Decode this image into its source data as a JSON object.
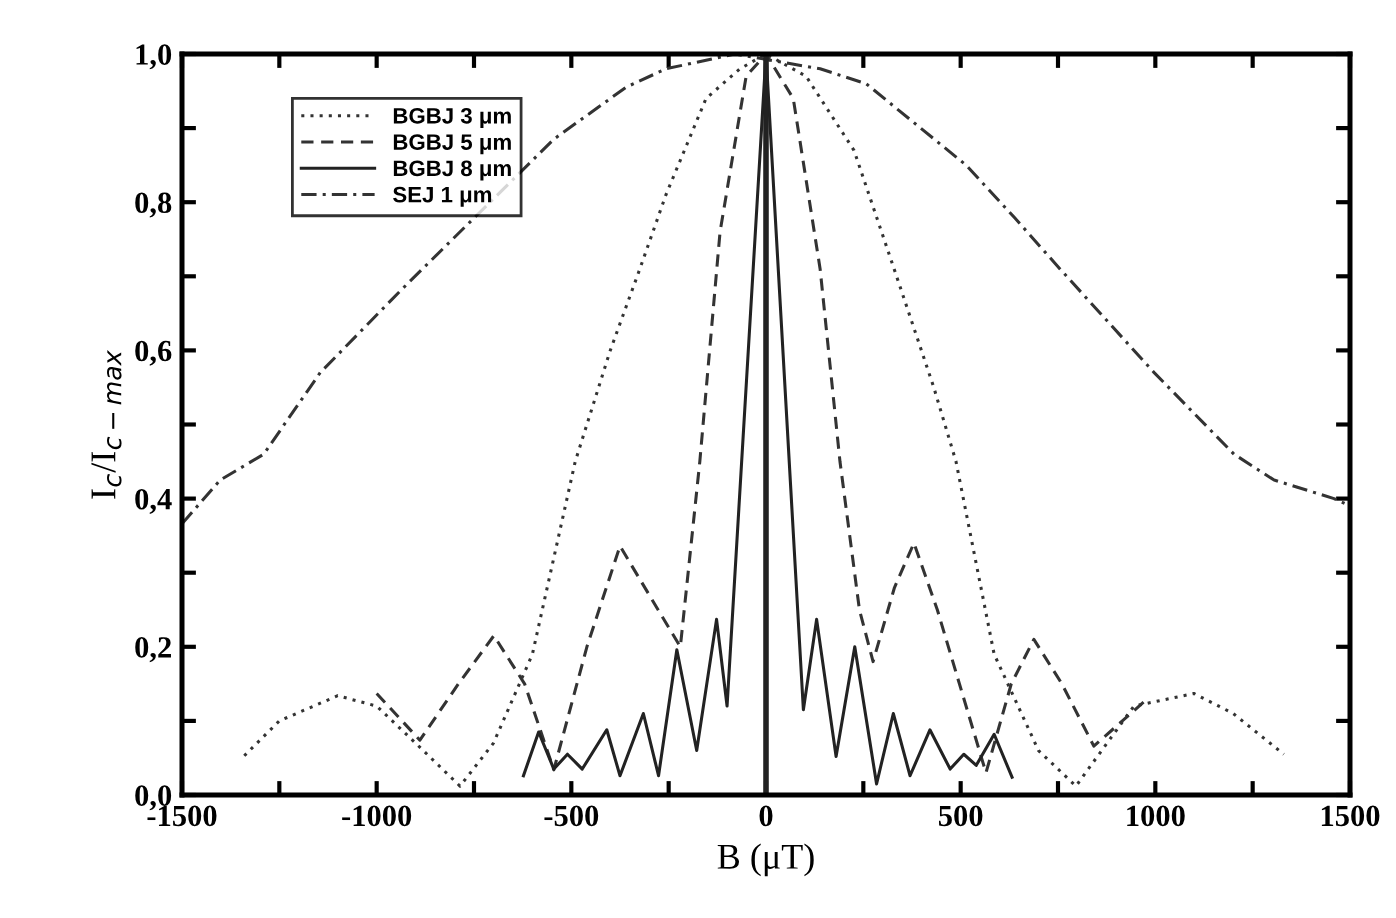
{
  "chart_data": {
    "type": "line",
    "xlabel": "B (μT)",
    "ylabel": "I$_{c}$/I$_{c−max}$",
    "xlim": [
      -1500,
      1500
    ],
    "ylim": [
      0,
      1.0
    ],
    "xticks": [
      -1500,
      {
        "value": -1250,
        "label": null
      },
      -1000,
      {
        "value": -750,
        "label": null
      },
      -500,
      {
        "value": -250,
        "label": null
      },
      0,
      {
        "value": 250,
        "label": null
      },
      500,
      {
        "value": 750,
        "label": null
      },
      1000,
      {
        "value": 1250,
        "label": null
      },
      1500
    ],
    "yticks": [
      {
        "value": 0,
        "label": "0,0"
      },
      {
        "value": 0.1,
        "label": null
      },
      {
        "value": 0.2,
        "label": "0,2"
      },
      {
        "value": 0.3,
        "label": null
      },
      {
        "value": 0.4,
        "label": "0,4"
      },
      {
        "value": 0.5,
        "label": null
      },
      {
        "value": 0.6,
        "label": "0,6"
      },
      {
        "value": 0.7,
        "label": null
      },
      {
        "value": 0.8,
        "label": "0,8"
      },
      {
        "value": 0.9,
        "label": null
      },
      {
        "value": 1.0,
        "label": "1,0"
      }
    ],
    "grid": false,
    "legend": "top left",
    "marker": "none",
    "ref_lines": [
      {
        "axis": "x",
        "value": 0,
        "color": "#222222",
        "line_style": "solid"
      }
    ],
    "series": [
      {
        "name": "BGBJ 3 μm",
        "color": "#333333",
        "line_style": "dotted",
        "x": [
          -1340,
          -1250,
          -1100,
          -1000,
          -900,
          -786,
          -700,
          -600,
          -490,
          -400,
          -324,
          -257,
          -154,
          -67,
          0,
          103,
          226,
          329,
          431,
          488,
          586,
          700,
          796,
          945,
          1099,
          1200,
          1330
        ],
        "values": [
          0.053,
          0.1,
          0.134,
          0.12,
          0.07,
          0.012,
          0.07,
          0.19,
          0.45,
          0.6,
          0.71,
          0.81,
          0.94,
          0.98,
          1.0,
          0.97,
          0.87,
          0.71,
          0.55,
          0.45,
          0.19,
          0.06,
          0.012,
          0.12,
          0.137,
          0.11,
          0.055
        ]
      },
      {
        "name": "BGBJ 5 μm",
        "color": "#333333",
        "line_style": "dashed",
        "x": [
          -1000,
          -889,
          -790,
          -699,
          -620,
          -545,
          -460,
          -375,
          -300,
          -220,
          -170,
          -118,
          -51,
          0,
          70,
          139,
          190,
          240,
          275,
          330,
          380,
          440,
          565,
          630,
          688,
          760,
          842,
          980
        ],
        "values": [
          0.137,
          0.074,
          0.15,
          0.215,
          0.15,
          0.034,
          0.2,
          0.336,
          0.27,
          0.2,
          0.45,
          0.76,
          0.97,
          1.0,
          0.94,
          0.71,
          0.45,
          0.25,
          0.18,
          0.28,
          0.34,
          0.25,
          0.03,
          0.15,
          0.21,
          0.15,
          0.066,
          0.13
        ]
      },
      {
        "name": "BGBJ 8 μm",
        "color": "#222222",
        "line_style": "solid",
        "x": [
          -623,
          -584,
          -545,
          -510,
          -472,
          -409,
          -375,
          -315,
          -276,
          -229,
          -178,
          -127,
          -100,
          0,
          96,
          130,
          180,
          228,
          284,
          327,
          370,
          421,
          473,
          508,
          540,
          586,
          632
        ],
        "values": [
          0.026,
          0.085,
          0.035,
          0.055,
          0.035,
          0.088,
          0.026,
          0.11,
          0.026,
          0.196,
          0.06,
          0.237,
          0.12,
          1.0,
          0.115,
          0.237,
          0.052,
          0.2,
          0.015,
          0.11,
          0.026,
          0.088,
          0.035,
          0.055,
          0.04,
          0.082,
          0.024
        ]
      },
      {
        "name": "SEJ 1 μm",
        "color": "#333333",
        "line_style": "dashdot",
        "x": [
          -1500,
          -1402,
          -1290,
          -1145,
          -940,
          -545,
          -360,
          -257,
          -80,
          139,
          257,
          514,
          637,
          755,
          997,
          1202,
          1305,
          1459,
          1500
        ],
        "values": [
          0.366,
          0.425,
          0.46,
          0.57,
          0.68,
          0.885,
          0.955,
          0.98,
          1.0,
          0.98,
          0.96,
          0.85,
          0.78,
          0.71,
          0.57,
          0.46,
          0.425,
          0.4,
          0.39
        ]
      }
    ]
  }
}
